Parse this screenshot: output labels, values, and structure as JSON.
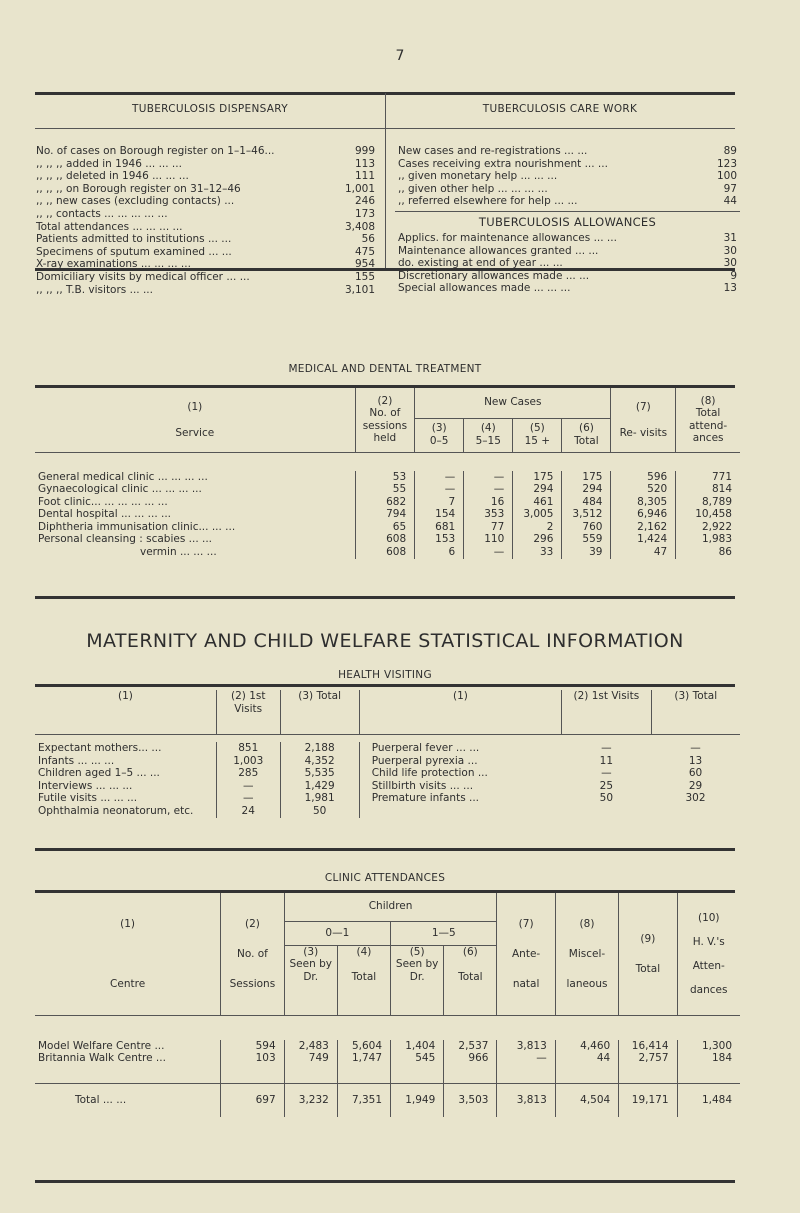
{
  "page_number": "7",
  "tb_dispensary": {
    "title": "TUBERCULOSIS DISPENSARY",
    "rows": [
      [
        "No. of cases on Borough register on 1–1–46...",
        "999"
      ],
      [
        ",, ,, ,, added in 1946 ... ... ...",
        "113"
      ],
      [
        ",, ,, ,, deleted in 1946 ... ... ...",
        "111"
      ],
      [
        ",, ,, ,, on Borough register on 31–12–46",
        "1,001"
      ],
      [
        ",, ,, new cases (excluding contacts) ...",
        "246"
      ],
      [
        ",, ,, contacts ... ... ... ... ...",
        "173"
      ],
      [
        "Total attendances ... ... ... ...",
        "3,408"
      ],
      [
        "Patients admitted to institutions ... ...",
        "56"
      ],
      [
        "Specimens of sputum examined ... ...",
        "475"
      ],
      [
        "X-ray examinations ... ... ... ...",
        "954"
      ],
      [
        "Domiciliary visits by medical officer ... ...",
        "155"
      ],
      [
        ",, ,, ,, T.B. visitors ... ...",
        "3,101"
      ]
    ]
  },
  "tb_care": {
    "title": "TUBERCULOSIS CARE WORK",
    "rows": [
      [
        "New cases and re-registrations ... ...",
        "89"
      ],
      [
        "Cases receiving extra nourishment ... ...",
        "123"
      ],
      [
        ",, given monetary help ... ... ...",
        "100"
      ],
      [
        ",, given other help ... ... ... ...",
        "97"
      ],
      [
        ",, referred elsewhere for help ... ...",
        "44"
      ]
    ],
    "allow_title": "TUBERCULOSIS ALLOWANCES",
    "allow_rows": [
      [
        "Applics. for maintenance allowances ... ...",
        "31"
      ],
      [
        "Maintenance allowances granted ... ...",
        "30"
      ],
      [
        "do. existing at end of year ... ...",
        "30"
      ],
      [
        "Discretionary allowances made ... ...",
        "9"
      ],
      [
        "Special allowances made ... ... ...",
        "13"
      ]
    ]
  },
  "medical": {
    "title": "MEDICAL AND DENTAL TREATMENT",
    "h": {
      "c1n": "(1)",
      "c1": "Service",
      "c2n": "(2)",
      "c2": "No. of sessions held",
      "new": "New Cases",
      "c3n": "(3)",
      "c3": "0–5",
      "c4n": "(4)",
      "c4": "5–15",
      "c5n": "(5)",
      "c5": "15 +",
      "c6n": "(6)",
      "c6": "Total",
      "c7n": "(7)",
      "c7": "Re- visits",
      "c8n": "(8)",
      "c8": "Total attend- ances"
    },
    "rows": [
      [
        "General medical clinic ... ... ... ...",
        "53",
        "—",
        "—",
        "175",
        "175",
        "596",
        "771"
      ],
      [
        "Gynaecological clinic ... ... ... ...",
        "55",
        "—",
        "—",
        "294",
        "294",
        "520",
        "814"
      ],
      [
        "Foot clinic... ... ... ... ... ...",
        "682",
        "7",
        "16",
        "461",
        "484",
        "8,305",
        "8,789"
      ],
      [
        "Dental hospital ... ... ... ...",
        "794",
        "154",
        "353",
        "3,005",
        "3,512",
        "6,946",
        "10,458"
      ],
      [
        "Diphtheria immunisation clinic... ... ...",
        "65",
        "681",
        "77",
        "2",
        "760",
        "2,162",
        "2,922"
      ],
      [
        "Personal cleansing : scabies ... ...",
        "608",
        "153",
        "110",
        "296",
        "559",
        "1,424",
        "1,983"
      ],
      [
        "vermin ... ... ...",
        "608",
        "6",
        "—",
        "33",
        "39",
        "47",
        "86"
      ]
    ]
  },
  "maternity_title": "MATERNITY AND CHILD WELFARE STATISTICAL INFORMATION",
  "health": {
    "title": "HEALTH VISITING",
    "h": [
      "(1)",
      "(2) 1st Visits",
      "(3) Total",
      "(1)",
      "(2) 1st Visits",
      "(3) Total"
    ],
    "left": [
      [
        "Expectant mothers... ...",
        "851",
        "2,188"
      ],
      [
        "Infants ... ... ...",
        "1,003",
        "4,352"
      ],
      [
        "Children aged 1–5 ... ...",
        "285",
        "5,535"
      ],
      [
        "Interviews ... ... ...",
        "—",
        "1,429"
      ],
      [
        "Futile visits ... ... ...",
        "—",
        "1,981"
      ],
      [
        "Ophthalmia neonatorum, etc.",
        "24",
        "50"
      ]
    ],
    "right": [
      [
        "Puerperal fever ... ...",
        "—",
        "—"
      ],
      [
        "Puerperal pyrexia ...",
        "11",
        "13"
      ],
      [
        "Child life protection ...",
        "—",
        "60"
      ],
      [
        "Stillbirth visits ... ...",
        "25",
        "29"
      ],
      [
        "Premature infants ...",
        "50",
        "302"
      ]
    ]
  },
  "clinic": {
    "title": "CLINIC ATTENDANCES",
    "h": {
      "c1n": "(1)",
      "c1": "Centre",
      "c2n": "(2)",
      "c2": "No. of Sessions",
      "children": "Children",
      "g1": "0—1",
      "g2": "1—5",
      "c3n": "(3)",
      "c3": "Seen by Dr.",
      "c4n": "(4)",
      "c4": "Total",
      "c5n": "(5)",
      "c5": "Seen by Dr.",
      "c6n": "(6)",
      "c6": "Total",
      "c7n": "(7)",
      "c7": "Ante- natal",
      "c8n": "(8)",
      "c8": "Miscel- laneous",
      "c9n": "(9)",
      "c9": "Total",
      "c10n": "(10)",
      "c10": "H. V.'s Atten- dances"
    },
    "rows": [
      [
        "Model Welfare Centre ...",
        "594",
        "2,483",
        "5,604",
        "1,404",
        "2,537",
        "3,813",
        "4,460",
        "16,414",
        "1,300"
      ],
      [
        "Britannia Walk Centre ...",
        "103",
        "749",
        "1,747",
        "545",
        "966",
        "—",
        "44",
        "2,757",
        "184"
      ]
    ],
    "total": [
      "Total ... ...",
      "697",
      "3,232",
      "7,351",
      "1,949",
      "3,503",
      "3,813",
      "4,504",
      "19,171",
      "1,484"
    ]
  }
}
